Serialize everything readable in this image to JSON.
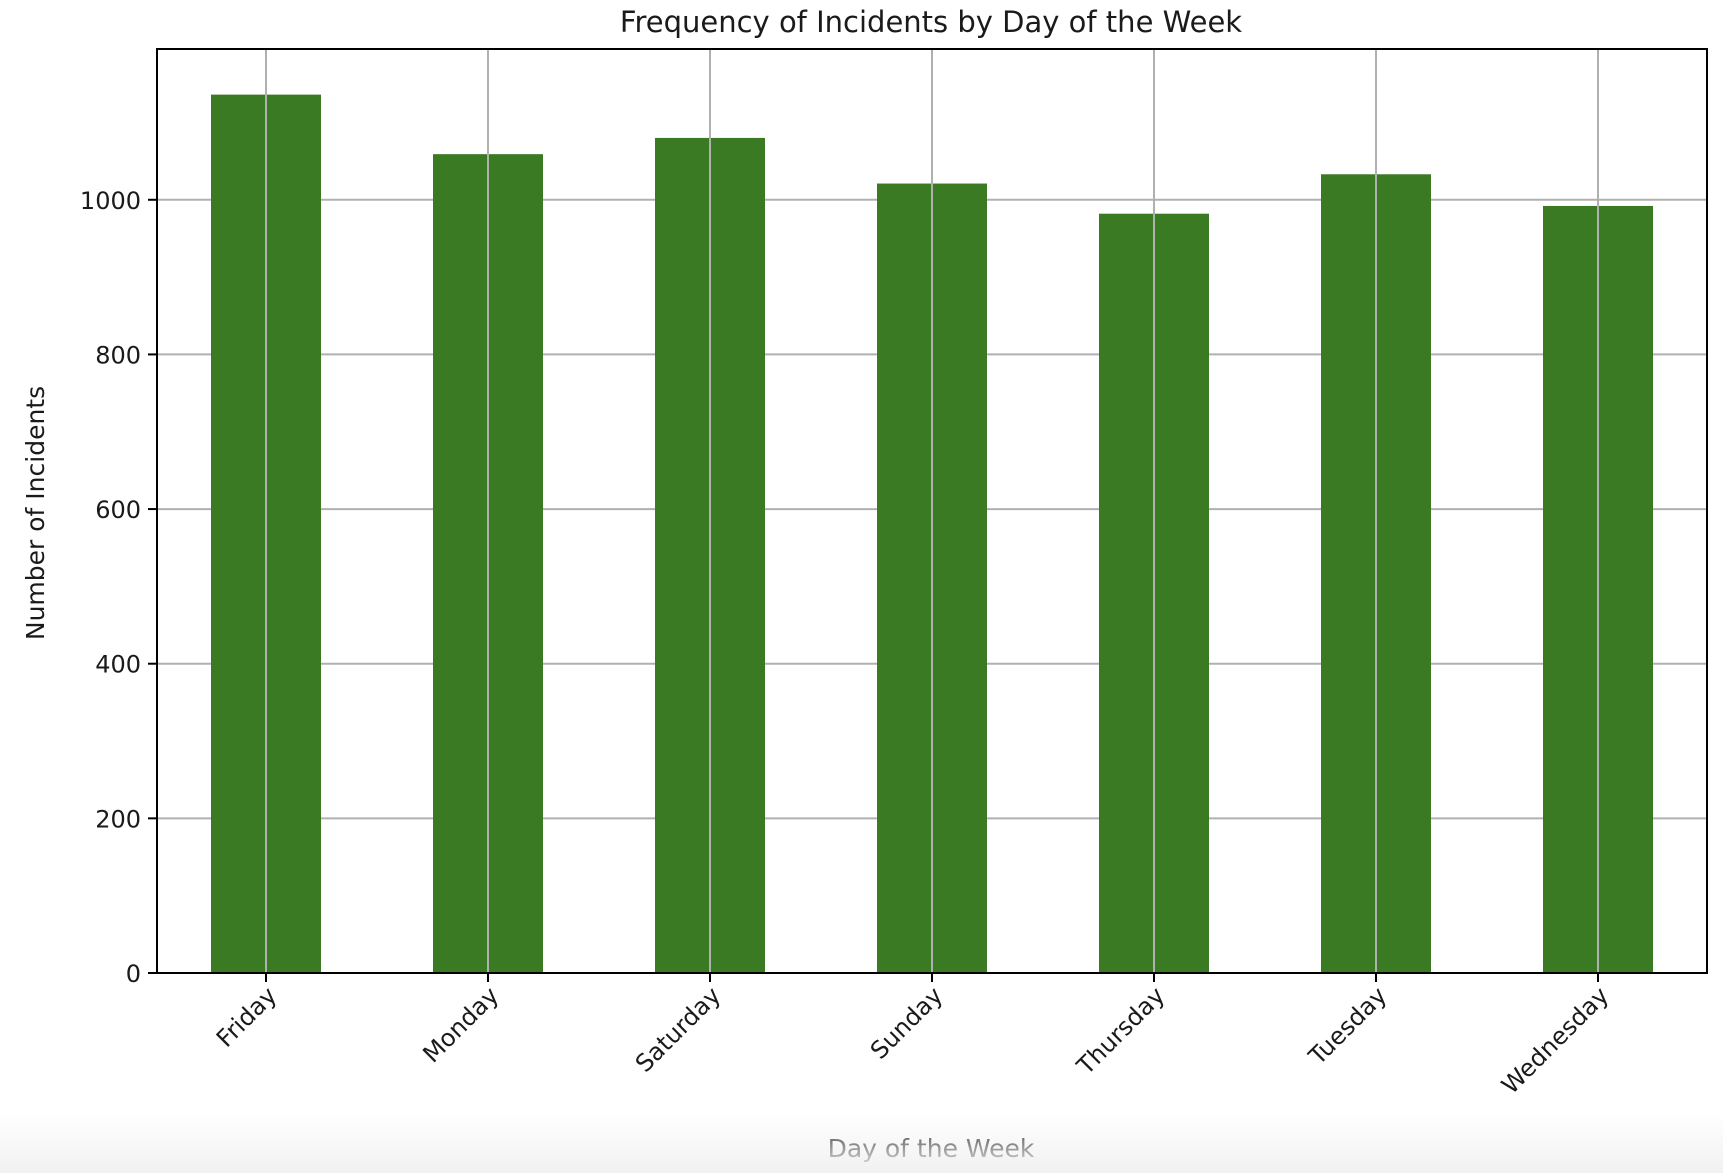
{
  "chart_data": {
    "type": "bar",
    "title": "Frequency of Incidents by Day of the Week",
    "xlabel": "Day of the Week",
    "ylabel": "Number of Incidents",
    "categories": [
      "Friday",
      "Monday",
      "Saturday",
      "Sunday",
      "Thursday",
      "Tuesday",
      "Wednesday"
    ],
    "values": [
      1136,
      1059,
      1080,
      1021,
      982,
      1033,
      992
    ],
    "ylim": [
      0,
      1195
    ],
    "yticks": [
      0,
      200,
      400,
      600,
      800,
      1000
    ],
    "grid": true,
    "legend": "none",
    "bar_color": "#3a7a22",
    "grid_color": "#b0b0b0"
  }
}
